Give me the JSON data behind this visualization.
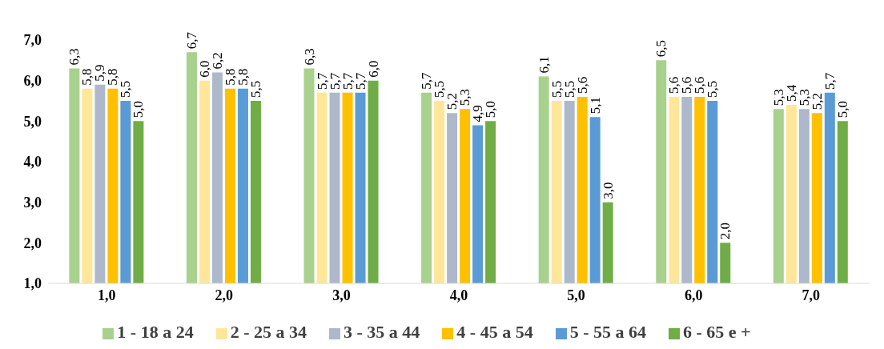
{
  "chart_data": {
    "type": "bar",
    "categories": [
      "1,0",
      "2,0",
      "3,0",
      "4,0",
      "5,0",
      "6,0",
      "7,0"
    ],
    "series": [
      {
        "name": "1 - 18 a 24",
        "color": "#a9d18e",
        "values": [
          6.3,
          6.7,
          6.3,
          5.7,
          6.1,
          6.5,
          5.3
        ],
        "value_labels": [
          "6,3",
          "6,7",
          "6,3",
          "5,7",
          "6,1",
          "6,5",
          "5,3"
        ]
      },
      {
        "name": "2 - 25 a 34",
        "color": "#ffe699",
        "values": [
          5.8,
          6.0,
          5.7,
          5.5,
          5.5,
          5.6,
          5.4
        ],
        "value_labels": [
          "5,8",
          "6,0",
          "5,7",
          "5,5",
          "5,5",
          "5,6",
          "5,4"
        ]
      },
      {
        "name": "3 - 35 a 44",
        "color": "#adb9ca",
        "values": [
          5.9,
          6.2,
          5.7,
          5.2,
          5.5,
          5.6,
          5.3
        ],
        "value_labels": [
          "5,9",
          "6,2",
          "5,7",
          "5,2",
          "5,5",
          "5,6",
          "5,3"
        ]
      },
      {
        "name": "4 - 45 a 54",
        "color": "#ffc000",
        "values": [
          5.8,
          5.8,
          5.7,
          5.3,
          5.6,
          5.6,
          5.2
        ],
        "value_labels": [
          "5,8",
          "5,8",
          "5,7",
          "5,3",
          "5,6",
          "5,6",
          "5,2"
        ]
      },
      {
        "name": "5 - 55 a 64",
        "color": "#5b9bd5",
        "values": [
          5.5,
          5.8,
          5.7,
          4.9,
          5.1,
          5.5,
          5.7
        ],
        "value_labels": [
          "5,5",
          "5,8",
          "5,7",
          "4,9",
          "5,1",
          "5,5",
          "5,7"
        ]
      },
      {
        "name": "6 - 65 e +",
        "color": "#70ad47",
        "values": [
          5.0,
          5.5,
          6.0,
          5.0,
          3.0,
          2.0,
          5.0
        ],
        "value_labels": [
          "5,0",
          "5,5",
          "6,0",
          "5,0",
          "3,0",
          "2,0",
          "5,0"
        ]
      }
    ],
    "ylim": [
      1,
      7
    ],
    "yticks": [
      {
        "value": 1,
        "label": "1,0"
      },
      {
        "value": 2,
        "label": "2,0"
      },
      {
        "value": 3,
        "label": "3,0"
      },
      {
        "value": 4,
        "label": "4,0"
      },
      {
        "value": 5,
        "label": "5,0"
      },
      {
        "value": 6,
        "label": "6,0"
      },
      {
        "value": 7,
        "label": "7,0"
      }
    ],
    "grid": false,
    "legend": "bottom"
  }
}
